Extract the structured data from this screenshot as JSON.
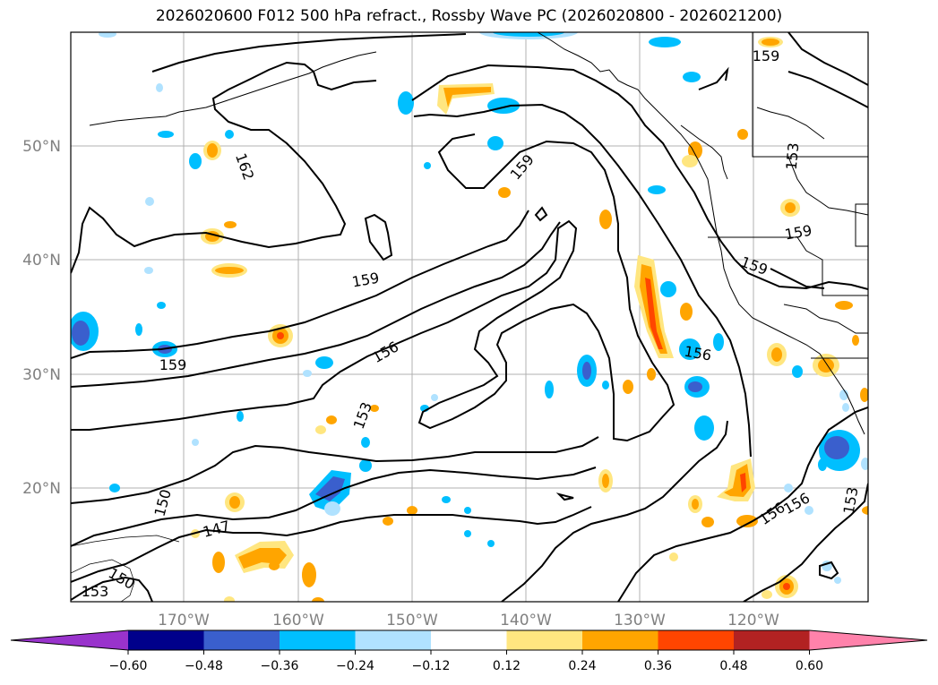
{
  "title": "2026020600 F012 500 hPa refract., Rossby Wave PC (2026020800 - 2026021200)",
  "map": {
    "lon_labels": [
      "170°W",
      "160°W",
      "150°W",
      "140°W",
      "130°W",
      "120°W"
    ],
    "lat_labels": [
      "50°N",
      "40°N",
      "30°N",
      "20°N"
    ],
    "contour_labels": [
      "159",
      "162",
      "159",
      "153",
      "159",
      "159",
      "159",
      "156",
      "156",
      "159",
      "153",
      "156",
      "153",
      "150",
      "147",
      "150",
      "153",
      "156"
    ],
    "grid": true
  },
  "colorbar": {
    "ticks": [
      "−0.60",
      "−0.48",
      "−0.36",
      "−0.24",
      "−0.12",
      "0.12",
      "0.24",
      "0.36",
      "0.48",
      "0.60"
    ],
    "colors": [
      "#9933cc",
      "#00008b",
      "#3a5fcd",
      "#00bfff",
      "#b0e2ff",
      "#ffffff",
      "#ffe680",
      "#ffa500",
      "#ff4500",
      "#b22222",
      "#ff82ab"
    ]
  }
}
